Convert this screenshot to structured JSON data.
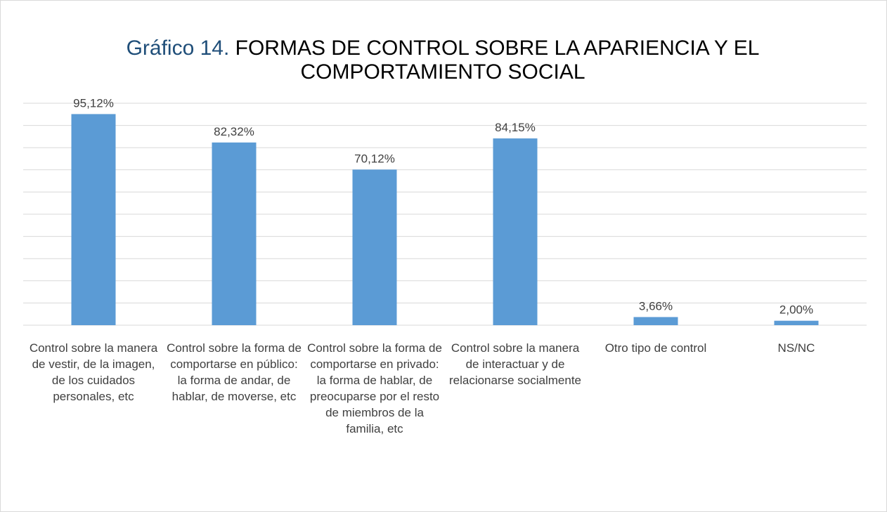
{
  "chart_data": {
    "type": "bar",
    "title": [
      "Gráfico 14.",
      "FORMAS DE CONTROL SOBRE LA APARIENCIA Y EL COMPORTAMIENTO SOCIAL"
    ],
    "categories": [
      "Control sobre la manera de vestir, de la imagen, de los cuidados personales, etc",
      "Control sobre la forma de comportarse en público: la forma de andar, de hablar, de moverse, etc",
      "Control sobre la forma de comportarse en privado: la forma de hablar, de preocuparse por el resto de miembros de la familia, etc",
      "Control sobre la manera de interactuar y de relacionarse socialmente",
      "Otro tipo de control",
      "NS/NC"
    ],
    "values": [
      95.12,
      82.32,
      70.12,
      84.15,
      3.66,
      2.0
    ],
    "value_labels": [
      "95,12%",
      "82,32%",
      "70,12%",
      "84,15%",
      "3,66%",
      "2,00%"
    ],
    "color": "#5b9bd5",
    "ylim": [
      0,
      100
    ],
    "yticks": [
      0,
      10,
      20,
      30,
      40,
      50,
      60,
      70,
      80,
      90,
      100
    ],
    "grid": true
  }
}
